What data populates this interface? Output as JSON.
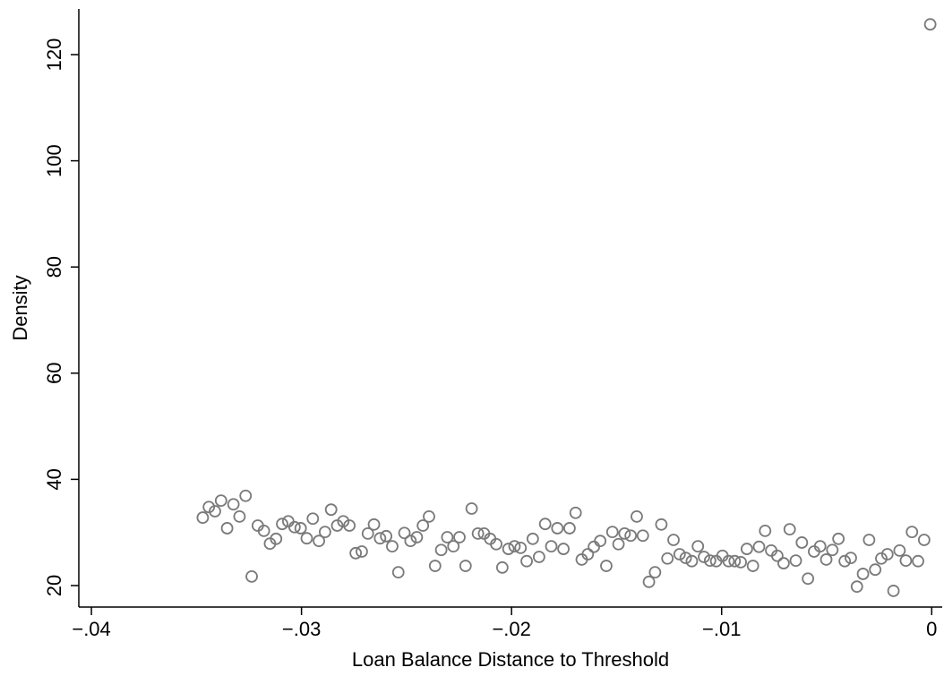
{
  "chart_data": {
    "type": "scatter",
    "x_label": "Loan Balance Distance to Threshold",
    "y_label": "Density",
    "color": "#7a7a7a",
    "xlim": [
      -0.0406,
      0.0005
    ],
    "ylim": [
      15.95,
      128.6
    ],
    "xticks": [
      {
        "value": -0.04,
        "label": "−.04"
      },
      {
        "value": -0.03,
        "label": "−.03"
      },
      {
        "value": -0.02,
        "label": "−.02"
      },
      {
        "value": -0.01,
        "label": "−.01"
      },
      0
    ],
    "yticks": [
      20,
      40,
      60,
      80,
      100,
      120
    ],
    "x": [
      -0.0347,
      -0.03441,
      -0.03412,
      -0.03383,
      -0.03354,
      -0.03324,
      -0.03295,
      -0.03266,
      -0.03237,
      -0.03208,
      -0.03179,
      -0.0315,
      -0.03121,
      -0.03092,
      -0.03063,
      -0.03033,
      -0.03004,
      -0.02975,
      -0.02946,
      -0.02917,
      -0.02888,
      -0.02859,
      -0.0283,
      -0.02801,
      -0.02772,
      -0.02742,
      -0.02713,
      -0.02684,
      -0.02655,
      -0.02626,
      -0.02597,
      -0.02568,
      -0.02539,
      -0.0251,
      -0.02481,
      -0.02451,
      -0.02422,
      -0.02393,
      -0.02364,
      -0.02335,
      -0.02306,
      -0.02277,
      -0.02248,
      -0.02219,
      -0.0219,
      -0.0216,
      -0.02131,
      -0.02102,
      -0.02073,
      -0.02044,
      -0.02015,
      -0.01986,
      -0.01957,
      -0.01928,
      -0.01899,
      -0.01869,
      -0.0184,
      -0.01811,
      -0.01782,
      -0.01753,
      -0.01724,
      -0.01695,
      -0.01666,
      -0.01637,
      -0.01608,
      -0.01578,
      -0.01549,
      -0.0152,
      -0.01491,
      -0.01462,
      -0.01433,
      -0.01404,
      -0.01375,
      -0.01346,
      -0.01317,
      -0.01287,
      -0.01258,
      -0.01229,
      -0.012,
      -0.01171,
      -0.01142,
      -0.01113,
      -0.01084,
      -0.01055,
      -0.01026,
      -0.00996,
      -0.00967,
      -0.00938,
      -0.00909,
      -0.0088,
      -0.00851,
      -0.00822,
      -0.00793,
      -0.00764,
      -0.00735,
      -0.00705,
      -0.00676,
      -0.00647,
      -0.00618,
      -0.00589,
      -0.0056,
      -0.00531,
      -0.00502,
      -0.00473,
      -0.00444,
      -0.00414,
      -0.00385,
      -0.00356,
      -0.00327,
      -0.00298,
      -0.00269,
      -0.0024,
      -0.00211,
      -0.00182,
      -0.00153,
      -0.00123,
      -0.00094,
      -0.00065,
      -0.00036,
      -7e-05
    ],
    "values": [
      32.8,
      34.8,
      34.0,
      36.0,
      30.8,
      35.3,
      33.0,
      36.9,
      21.7,
      31.3,
      30.3,
      27.9,
      28.8,
      31.6,
      32.1,
      31.0,
      30.8,
      28.9,
      32.6,
      28.4,
      30.1,
      34.3,
      31.3,
      32.1,
      31.3,
      26.1,
      26.4,
      29.8,
      31.5,
      28.9,
      29.3,
      27.4,
      22.5,
      29.9,
      28.4,
      29.1,
      31.3,
      33.0,
      23.7,
      26.7,
      29.1,
      27.4,
      29.1,
      23.7,
      34.5,
      29.8,
      29.8,
      28.8,
      27.8,
      23.4,
      26.9,
      27.4,
      27.1,
      24.6,
      28.8,
      25.4,
      31.6,
      27.4,
      30.8,
      26.9,
      30.8,
      33.7,
      24.9,
      25.9,
      27.3,
      28.4,
      23.7,
      30.1,
      27.8,
      29.8,
      29.4,
      33.0,
      29.4,
      20.7,
      22.5,
      31.5,
      25.1,
      28.6,
      25.9,
      25.2,
      24.6,
      27.4,
      25.4,
      24.7,
      24.6,
      25.6,
      24.6,
      24.6,
      24.4,
      26.9,
      23.7,
      27.3,
      30.3,
      26.6,
      25.6,
      24.2,
      30.6,
      24.7,
      28.1,
      21.3,
      26.4,
      27.4,
      24.9,
      26.7,
      28.8,
      24.6,
      25.2,
      19.8,
      22.2,
      28.6,
      23.0,
      25.1,
      25.9,
      19.0,
      26.6,
      24.7,
      30.1,
      24.6,
      28.6,
      125.7
    ]
  }
}
